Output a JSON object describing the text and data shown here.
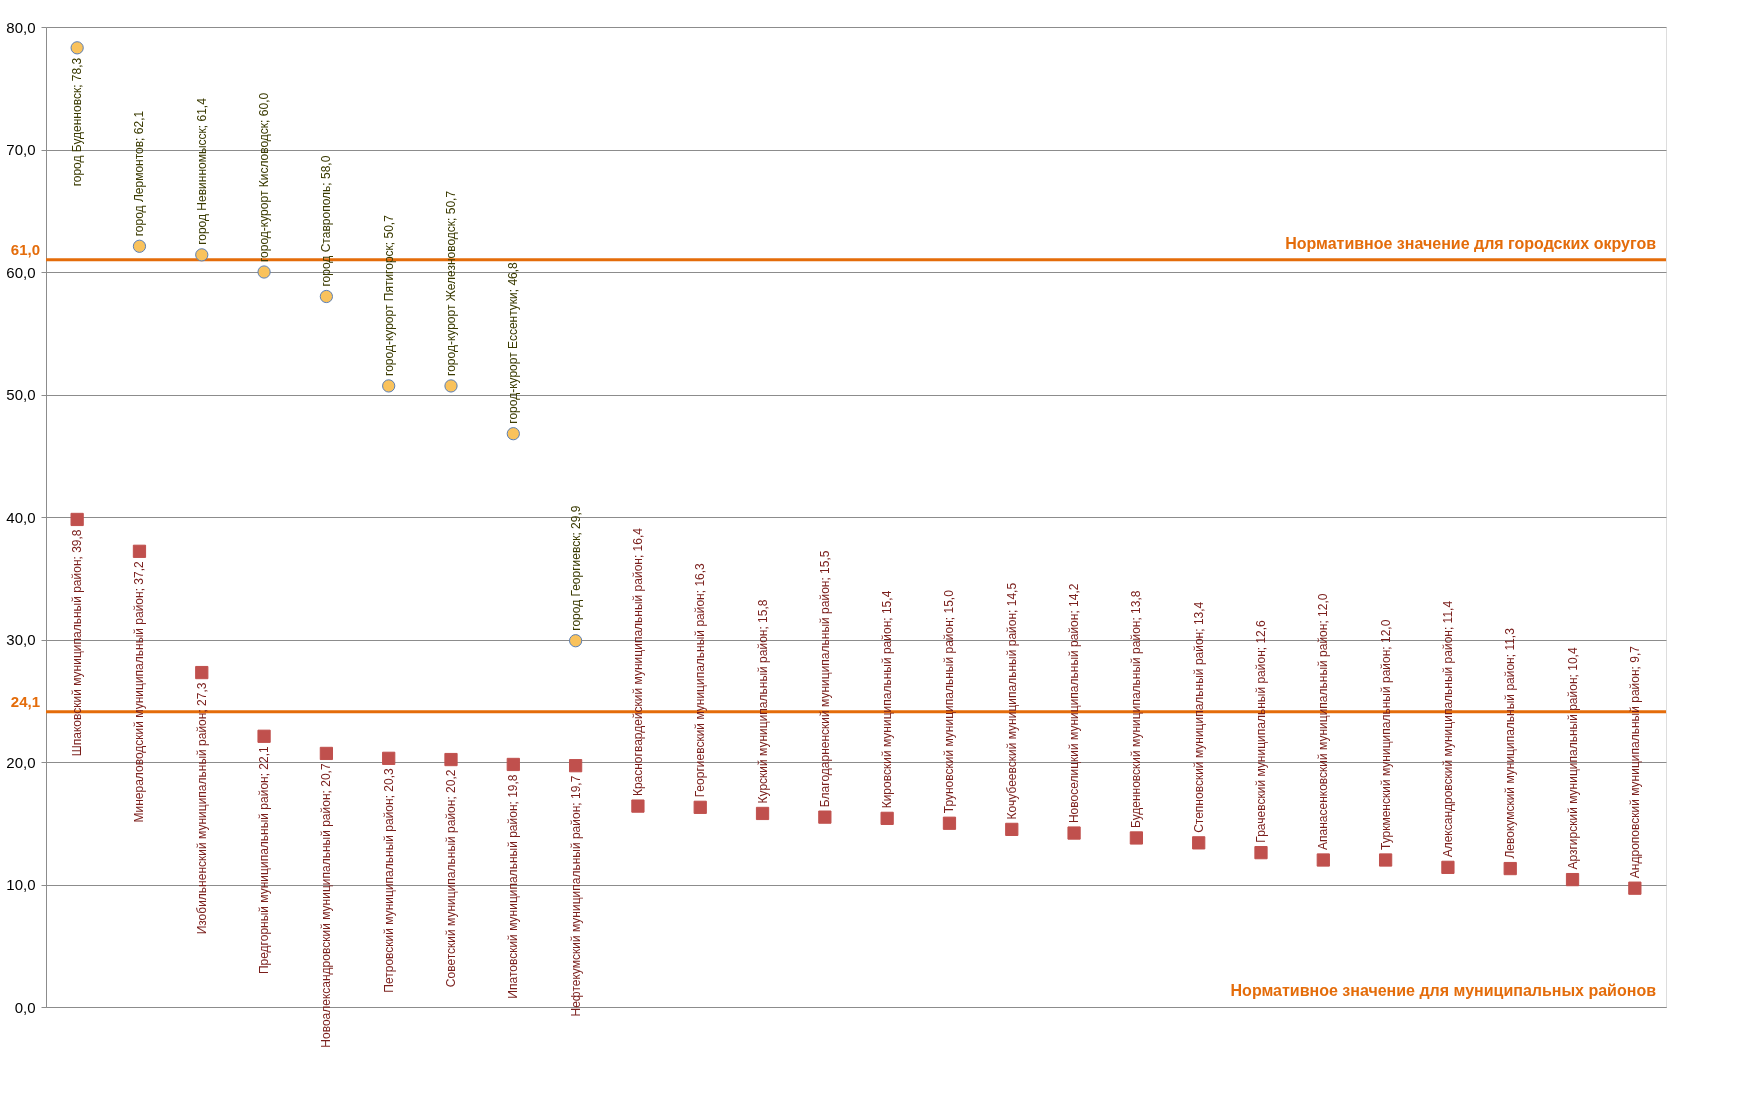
{
  "chart_data": {
    "type": "scatter",
    "categories": [
      null,
      null,
      null,
      null,
      null,
      null,
      null,
      null,
      null,
      null,
      null,
      null,
      null,
      null,
      null,
      null,
      null,
      null,
      null,
      null,
      null,
      null,
      null,
      null,
      null,
      null
    ],
    "series": [
      {
        "color": "#f9c25c",
        "marker": "circle",
        "values": [
          78.3,
          62.1,
          61.4,
          60.0,
          58.0,
          50.7,
          50.7,
          46.8,
          29.9,
          null,
          null,
          null,
          null,
          null,
          null,
          null,
          null,
          null,
          null,
          null,
          null,
          null,
          null,
          null,
          null,
          null
        ],
        "value_labels": [
          "город Буденновск; 78,3",
          "город Лермонтов; 62,1",
          "город Невинномысск; 61,4",
          "город-курорт  Кисловодск; 60,0",
          "город Ставрополь; 58,0",
          "город-курорт Пятигорск; 50,7",
          "город-курорт Железноводск; 50,7",
          "город-курорт Ессентуки; 46,8",
          "город Георгиевск; 29,9",
          null,
          null,
          null,
          null,
          null,
          null,
          null,
          null,
          null,
          null,
          null,
          null,
          null,
          null,
          null,
          null,
          null
        ]
      },
      {
        "color": "#c0504d",
        "marker": "square",
        "values": [
          39.8,
          37.2,
          27.3,
          22.1,
          20.7,
          20.3,
          20.2,
          19.8,
          19.7,
          16.4,
          16.3,
          15.8,
          15.5,
          15.4,
          15.0,
          14.5,
          14.2,
          13.8,
          13.4,
          12.6,
          12.0,
          12.0,
          11.4,
          11.3,
          10.4,
          9.7
        ],
        "value_labels": [
          "Шпаковский муниципальный район; 39,8",
          "Минераловодский муниципальный район; 37,2",
          "Изобильненский муниципальный район; 27,3",
          "Предгорный муниципальный район; 22,1",
          "Новоалександровский муниципальный район; 20,7",
          "Петровский муниципальный район; 20,3",
          "Советский муниципальный район; 20,2",
          "Ипатовский муниципальный район; 19,8",
          "Нефтекумский муниципальный район; 19,7",
          "Красногвардейский муниципальный район; 16,4",
          "Георгиевский муниципальный район; 16,3",
          "Курский муниципальный район; 15,8",
          "Благодарненский муниципальный район; 15,5",
          "Кировский муниципальный район; 15,4",
          "Труновский муниципальный район; 15,0",
          "Кочубеевский муниципальный район; 14,5",
          "Новоселицкий муниципальный район; 14,2",
          "Буденновский муниципальный район; 13,8",
          "Степновский муниципальный район; 13,4",
          "Грачевский муниципальный район; 12,6",
          "Апанасенковский муниципальный район; 12,0",
          "Туркменский муниципальный район; 12,0",
          "Александровский муниципальный район; 11,4",
          "Левокумский муниципальный район; 11,3",
          "Арзгирский муниципальный район; 10,4",
          "Андроповский муниципальный район; 9,7"
        ]
      }
    ],
    "ylim": [
      0,
      80
    ],
    "yticks": [
      {
        "value": 0,
        "label": "0,0"
      },
      {
        "value": 10,
        "label": "10,0"
      },
      {
        "value": 20,
        "label": "20,0"
      },
      {
        "value": 30,
        "label": "30,0"
      },
      {
        "value": 40,
        "label": "40,0"
      },
      {
        "value": 50,
        "label": "50,0"
      },
      {
        "value": 60,
        "label": "60,0"
      },
      {
        "value": 70,
        "label": "70,0"
      },
      {
        "value": 80,
        "label": "80,0"
      }
    ],
    "ref_lines": [
      {
        "axis": "y",
        "value": 61.0,
        "label": "61,0",
        "color": "#e46c0a"
      },
      {
        "axis": "y",
        "value": 24.1,
        "label": "24,1",
        "color": "#e46c0a"
      }
    ],
    "annotations": [
      "Нормативное значение для городских округов",
      "Нормативное значение для муниципальных районов"
    ],
    "grid": "y",
    "legend": false,
    "tick_labels": "y"
  }
}
